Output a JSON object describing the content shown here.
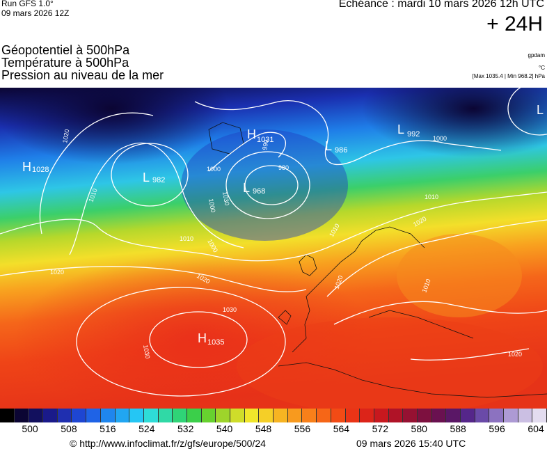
{
  "header": {
    "run": "Run GFS 1.0°",
    "run_date": "09 mars 2026 12Z",
    "echeance": "Echéance : mardi 10 mars 2026 12h UTC",
    "lead": "+ 24H"
  },
  "titles": {
    "line1": "Géopotentiel à 500hPa",
    "line2": "Température à 500hPa",
    "line3": "Pression au niveau de la mer"
  },
  "units": {
    "geopotential": "gpdam",
    "temperature": "°C",
    "pressure_range": "[Max 1035.4 | Min 968.2] hPa"
  },
  "pressure_centers": [
    {
      "type": "H",
      "value": "1028"
    },
    {
      "type": "L",
      "value": "982"
    },
    {
      "type": "H",
      "value": "1031"
    },
    {
      "type": "L",
      "value": "986"
    },
    {
      "type": "L",
      "value": "968"
    },
    {
      "type": "L",
      "value": "992"
    },
    {
      "type": "L",
      "value": ""
    },
    {
      "type": "H",
      "value": "1035"
    }
  ],
  "isobar_labels": [
    "1020",
    "1010",
    "1000",
    "990",
    "980",
    "1000",
    "1010",
    "1020",
    "1030",
    "1030",
    "1020",
    "1010",
    "1000",
    "1000",
    "1010",
    "1020",
    "1020",
    "1010",
    "1020",
    "1030"
  ],
  "colorbar": {
    "colors": [
      "#000000",
      "#0b0533",
      "#12105e",
      "#1a1a8a",
      "#1f2fb0",
      "#1e46d2",
      "#1f63e6",
      "#1f86ee",
      "#21a6f2",
      "#25c6f4",
      "#2edcd8",
      "#30d9a6",
      "#2fd477",
      "#3bcf4a",
      "#67d12f",
      "#9ed42b",
      "#cfdd2a",
      "#f0e62b",
      "#f5cf27",
      "#f7b422",
      "#f89a1e",
      "#f8801a",
      "#f66617",
      "#f24b15",
      "#ea3416",
      "#dc2419",
      "#c8181e",
      "#b01327",
      "#961132",
      "#7d103f",
      "#6a1150",
      "#5a1766",
      "#55268a",
      "#6a4aa8",
      "#8c72c0",
      "#ad9ad4",
      "#cbbfe3",
      "#e3dcef"
    ],
    "tick_labels": [
      "500",
      "508",
      "516",
      "524",
      "532",
      "540",
      "548",
      "556",
      "564",
      "572",
      "580",
      "588",
      "596",
      "604"
    ]
  },
  "footer": {
    "url": "© http://www.infoclimat.fr/z/gfs/europe/500/24",
    "timestamp": "09 mars 2026 15:40 UTC"
  }
}
